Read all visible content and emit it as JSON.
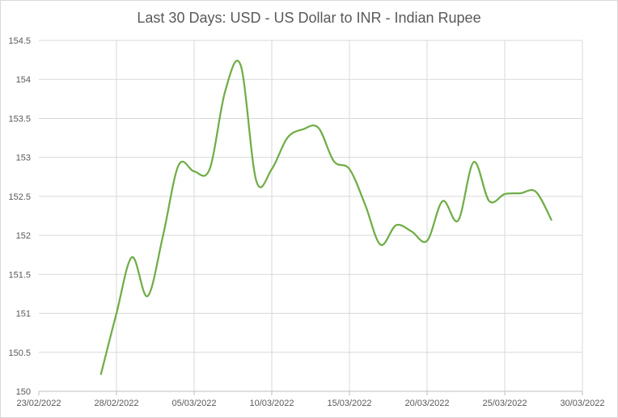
{
  "chart_data": {
    "type": "line",
    "title": "Last 30 Days: USD - US Dollar to INR - Indian Rupee",
    "xlabel": "",
    "ylabel": "",
    "ylim": [
      150,
      154.5
    ],
    "y_ticks": [
      "150",
      "150.5",
      "151",
      "151.5",
      "152",
      "152.5",
      "153",
      "153.5",
      "154",
      "154.5"
    ],
    "x_ticks": [
      "23/02/2022",
      "28/02/2022",
      "05/03/2022",
      "10/03/2022",
      "15/03/2022",
      "20/03/2022",
      "25/03/2022",
      "30/03/2022"
    ],
    "x_range": [
      "2022-02-23",
      "2022-03-30"
    ],
    "grid": true,
    "line_color": "#70ad47",
    "series": [
      {
        "x": [
          "2022-02-27",
          "2022-02-28",
          "2022-03-01",
          "2022-03-02",
          "2022-03-03",
          "2022-03-04",
          "2022-03-05",
          "2022-03-06",
          "2022-03-07",
          "2022-03-08",
          "2022-03-09",
          "2022-03-10",
          "2022-03-11",
          "2022-03-12",
          "2022-03-13",
          "2022-03-14",
          "2022-03-15",
          "2022-03-16",
          "2022-03-17",
          "2022-03-18",
          "2022-03-19",
          "2022-03-20",
          "2022-03-21",
          "2022-03-22",
          "2022-03-23",
          "2022-03-24",
          "2022-03-25",
          "2022-03-26",
          "2022-03-27",
          "2022-03-28"
        ],
        "values": [
          150.22,
          151.0,
          151.72,
          151.22,
          152.0,
          152.9,
          152.82,
          152.85,
          153.85,
          154.18,
          152.7,
          152.85,
          153.25,
          153.36,
          153.38,
          152.95,
          152.85,
          152.4,
          151.88,
          152.13,
          152.05,
          151.93,
          152.44,
          152.19,
          152.94,
          152.44,
          152.53,
          152.54,
          152.56,
          152.2
        ]
      }
    ]
  }
}
